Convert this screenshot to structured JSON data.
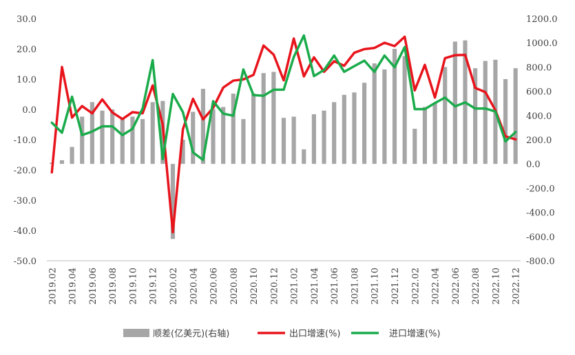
{
  "chart_data": {
    "type": "bar+line",
    "title": "",
    "x": [
      "2019.02",
      "2019.03",
      "2019.04",
      "2019.05",
      "2019.06",
      "2019.07",
      "2019.08",
      "2019.09",
      "2019.10",
      "2019.11",
      "2019.12",
      "2020.01",
      "2020.02",
      "2020.03",
      "2020.04",
      "2020.05",
      "2020.06",
      "2020.07",
      "2020.08",
      "2020.09",
      "2020.10",
      "2020.11",
      "2020.12",
      "2021.01",
      "2021.02",
      "2021.03",
      "2021.04",
      "2021.05",
      "2021.06",
      "2021.07",
      "2021.08",
      "2021.09",
      "2021.10",
      "2021.11",
      "2021.12",
      "2022.01",
      "2022.02",
      "2022.03",
      "2022.04",
      "2022.05",
      "2022.06",
      "2022.07",
      "2022.08",
      "2022.09",
      "2022.10",
      "2022.11",
      "2022.12"
    ],
    "x_tick_labels": [
      "2019.02",
      "2019.04",
      "2019.06",
      "2019.08",
      "2019.10",
      "2019.12",
      "2020.02",
      "2020.04",
      "2020.06",
      "2020.08",
      "2020.10",
      "2020.12",
      "2021.02",
      "2021.04",
      "2021.06",
      "2021.08",
      "2021.10",
      "2021.12",
      "2022.02",
      "2022.04",
      "2022.06",
      "2022.08",
      "2022.10",
      "2022.12"
    ],
    "y_left": {
      "ylim": [
        -50,
        30
      ],
      "ticks": [
        "30.0",
        "20.0",
        "10.0",
        "0.0",
        "-10.0",
        "-20.0",
        "-30.0",
        "-40.0",
        "-50.0"
      ]
    },
    "y_right": {
      "ylim": [
        -800,
        1200
      ],
      "ticks": [
        "1200.0",
        "1000.0",
        "800.0",
        "600.0",
        "400.0",
        "200.0",
        "0.0",
        "-200.0",
        "-400.0",
        "-600.0",
        "-800.0"
      ]
    },
    "grid": false,
    "legend_position": "bottom",
    "series": [
      {
        "name": "顺差(亿美元)(右轴)",
        "type": "bar",
        "axis": "right",
        "color": "#a6a6a6",
        "values": [
          10,
          30,
          140,
          390,
          510,
          440,
          450,
          380,
          390,
          370,
          510,
          520,
          -620,
          200,
          430,
          620,
          450,
          470,
          580,
          370,
          580,
          750,
          760,
          380,
          390,
          120,
          410,
          440,
          510,
          570,
          590,
          670,
          830,
          780,
          950,
          890,
          290,
          470,
          500,
          800,
          1010,
          1020,
          790,
          850,
          860,
          700,
          790
        ]
      },
      {
        "name": "出口增速(%)",
        "type": "line",
        "axis": "left",
        "color": "#e8141c",
        "values": [
          -20.8,
          14.0,
          -2.7,
          1.1,
          -1.3,
          3.3,
          -1.0,
          -3.2,
          -0.9,
          -1.3,
          7.9,
          -5.0,
          -40.6,
          -6.6,
          3.5,
          -3.3,
          0.5,
          7.2,
          9.5,
          9.9,
          11.4,
          21.1,
          18.1,
          9.6,
          23.4,
          10.9,
          17.2,
          12.4,
          15.9,
          14.4,
          18.7,
          19.9,
          20.3,
          22.0,
          20.9,
          24.0,
          6.3,
          14.7,
          3.9,
          16.9,
          17.9,
          18.0,
          7.1,
          5.7,
          -0.3,
          -8.9,
          -9.9
        ]
      },
      {
        "name": "进口增速(%)",
        "type": "line",
        "axis": "left",
        "color": "#1aab4b",
        "values": [
          -4.4,
          -7.7,
          4.2,
          -8.5,
          -7.3,
          -5.6,
          -5.6,
          -8.5,
          -6.4,
          0.3,
          16.3,
          -16.4,
          5.1,
          -0.9,
          -14.2,
          -16.7,
          2.7,
          -1.4,
          -2.1,
          13.2,
          4.7,
          4.5,
          6.5,
          6.5,
          17.3,
          24.4,
          11.0,
          13.0,
          17.8,
          12.4,
          14.3,
          16.1,
          12.4,
          17.8,
          13.9,
          20.6,
          0.1,
          0.1,
          2.1,
          3.9,
          1.0,
          2.3,
          0.3,
          0.3,
          -0.7,
          -10.6,
          -7.5
        ]
      }
    ]
  }
}
